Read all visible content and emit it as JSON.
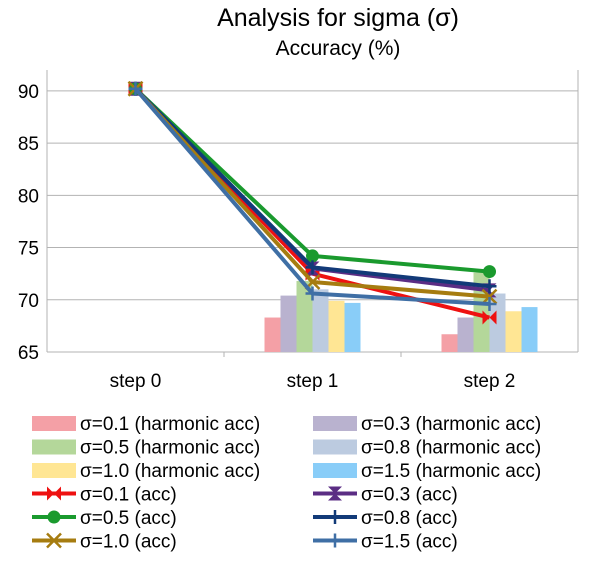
{
  "chart_data": {
    "type": "bar+line",
    "title": "Analysis for sigma (σ)",
    "subtitle": "Accuracy (%)",
    "categories": [
      "step 0",
      "step 1",
      "step 2"
    ],
    "ylim": [
      65,
      92
    ],
    "yticks": [
      65,
      70,
      75,
      80,
      85,
      90
    ],
    "grid": "horizontal",
    "legend_position": "bottom",
    "bar_series": [
      {
        "name": "σ=0.1 (harmonic acc)",
        "color": "#f4a0a6",
        "values": [
          null,
          68.3,
          66.7
        ]
      },
      {
        "name": "σ=0.3 (harmonic acc)",
        "color": "#b9b2cf",
        "values": [
          null,
          70.4,
          68.3
        ]
      },
      {
        "name": "σ=0.5 (harmonic acc)",
        "color": "#b4d79a",
        "values": [
          null,
          71.8,
          72.6
        ]
      },
      {
        "name": "σ=0.8 (harmonic acc)",
        "color": "#bccbe0",
        "values": [
          null,
          71.0,
          70.6
        ]
      },
      {
        "name": "σ=1.0 (harmonic acc)",
        "color": "#ffe694",
        "values": [
          null,
          69.9,
          68.9
        ]
      },
      {
        "name": "σ=1.5 (harmonic acc)",
        "color": "#89cdf8",
        "values": [
          null,
          69.7,
          69.3
        ]
      }
    ],
    "line_series": [
      {
        "name": "σ=0.1 (acc)",
        "color": "#ee1111",
        "marker": "bowtie",
        "values": [
          90.2,
          72.5,
          68.3
        ]
      },
      {
        "name": "σ=0.3 (acc)",
        "color": "#5b2d84",
        "marker": "hourglass",
        "values": [
          90.2,
          73.0,
          70.9
        ]
      },
      {
        "name": "σ=0.5 (acc)",
        "color": "#1a9a2e",
        "marker": "circle",
        "values": [
          90.2,
          74.2,
          72.7
        ]
      },
      {
        "name": "σ=0.8 (acc)",
        "color": "#123a78",
        "marker": "plus",
        "values": [
          90.2,
          73.1,
          71.3
        ]
      },
      {
        "name": "σ=1.0 (acc)",
        "color": "#a67c10",
        "marker": "x",
        "values": [
          90.2,
          71.7,
          70.3
        ]
      },
      {
        "name": "σ=1.5 (acc)",
        "color": "#3f6fa5",
        "marker": "plus",
        "values": [
          90.2,
          70.6,
          69.6
        ]
      }
    ]
  }
}
